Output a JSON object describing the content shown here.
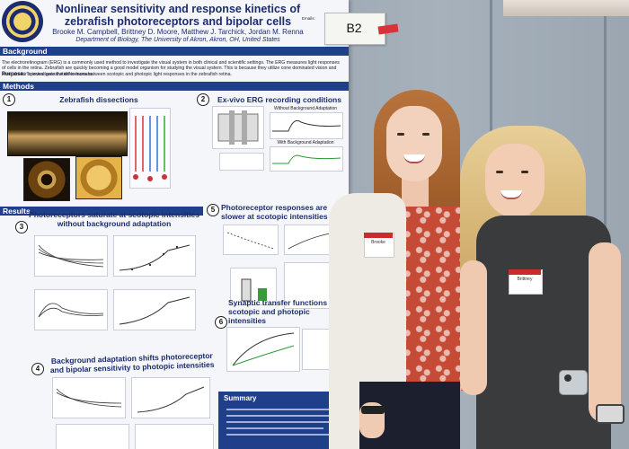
{
  "poster": {
    "title": "Nonlinear sensitivity and response kinetics of zebrafish photoreceptors and bipolar cells",
    "authors": "Brooke M. Campbell, Brittney D. Moore, Matthew J. Tarchick, Jordan M. Renna",
    "department": "Department of Biology, The University of Akron, Akron, OH, United States",
    "contact": "Emails:",
    "background_heading": "Background",
    "background_text": "The electroretinogram (ERG) is a commonly used method to investigate the visual system in both clinical and scientific settings. The ERG measures light responses of cells in the retina. Zebrafish are quickly becoming a good model organism for studying the visual system. This is because they utilize cone dominated vision and have similar spectral sensitivities to humans.",
    "purpose_label": "Purpose:",
    "purpose_text": "To investigate the differences between scotopic and photopic light responses in the zebrafish retina.",
    "methods_heading": "Methods",
    "results_heading": "Results",
    "summary_heading": "Summary",
    "sections": [
      {
        "num": "1",
        "title": "Zebrafish dissections"
      },
      {
        "num": "2",
        "title": "Ex-vivo ERG recording conditions"
      },
      {
        "num": "3",
        "title": "Photoreceptors saturate at scotopic intensities without background adaptation"
      },
      {
        "num": "4",
        "title": "Background adaptation shifts photoreceptor and bipolar sensitivity to photopic intensities"
      },
      {
        "num": "5",
        "title": "Photoreceptor responses are slower at scotopic intensities"
      },
      {
        "num": "6",
        "title": "Synaptic transfer functions for scotopic and photopic intensities"
      }
    ],
    "fig2_labels": {
      "without": "Without Background Adaptation",
      "with": "With Background Adaptation"
    }
  },
  "sign": {
    "label": "B2"
  },
  "name_tags": {
    "left": "Brooke",
    "right": "Brittney"
  }
}
